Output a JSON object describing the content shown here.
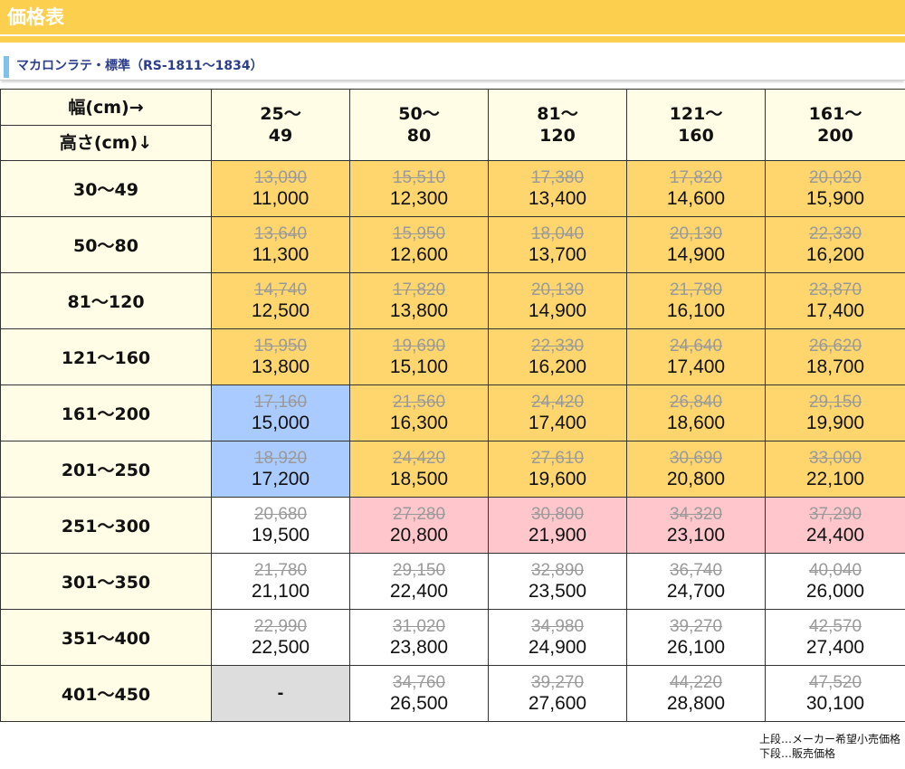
{
  "header": {
    "title": "価格表"
  },
  "subheading": {
    "text": "マカロンラテ・標準（RS-1811〜1834）"
  },
  "table": {
    "corner_width": "幅(cm)→",
    "corner_height": "高さ(cm)↓",
    "columns": [
      {
        "top": "25〜",
        "bottom": "49"
      },
      {
        "top": "50〜",
        "bottom": "80"
      },
      {
        "top": "81〜",
        "bottom": "120"
      },
      {
        "top": "121〜",
        "bottom": "160"
      },
      {
        "top": "161〜",
        "bottom": "200"
      }
    ],
    "rows": [
      {
        "label": "30〜49",
        "cells": [
          {
            "old": "13,090",
            "new": "11,000",
            "color": "#fed66d"
          },
          {
            "old": "15,510",
            "new": "12,300",
            "color": "#fed66d"
          },
          {
            "old": "17,380",
            "new": "13,400",
            "color": "#fed66d"
          },
          {
            "old": "17,820",
            "new": "14,600",
            "color": "#fed66d"
          },
          {
            "old": "20,020",
            "new": "15,900",
            "color": "#fed66d"
          }
        ]
      },
      {
        "label": "50〜80",
        "cells": [
          {
            "old": "13,640",
            "new": "11,300",
            "color": "#fed66d"
          },
          {
            "old": "15,950",
            "new": "12,600",
            "color": "#fed66d"
          },
          {
            "old": "18,040",
            "new": "13,700",
            "color": "#fed66d"
          },
          {
            "old": "20,130",
            "new": "14,900",
            "color": "#fed66d"
          },
          {
            "old": "22,330",
            "new": "16,200",
            "color": "#fed66d"
          }
        ]
      },
      {
        "label": "81〜120",
        "cells": [
          {
            "old": "14,740",
            "new": "12,500",
            "color": "#fed66d"
          },
          {
            "old": "17,820",
            "new": "13,800",
            "color": "#fed66d"
          },
          {
            "old": "20,130",
            "new": "14,900",
            "color": "#fed66d"
          },
          {
            "old": "21,780",
            "new": "16,100",
            "color": "#fed66d"
          },
          {
            "old": "23,870",
            "new": "17,400",
            "color": "#fed66d"
          }
        ]
      },
      {
        "label": "121〜160",
        "cells": [
          {
            "old": "15,950",
            "new": "13,800",
            "color": "#fed66d"
          },
          {
            "old": "19,690",
            "new": "15,100",
            "color": "#fed66d"
          },
          {
            "old": "22,330",
            "new": "16,200",
            "color": "#fed66d"
          },
          {
            "old": "24,640",
            "new": "17,400",
            "color": "#fed66d"
          },
          {
            "old": "26,620",
            "new": "18,700",
            "color": "#fed66d"
          }
        ]
      },
      {
        "label": "161〜200",
        "cells": [
          {
            "old": "17,160",
            "new": "15,000",
            "color": "#aacbff"
          },
          {
            "old": "21,560",
            "new": "16,300",
            "color": "#fed66d"
          },
          {
            "old": "24,420",
            "new": "17,400",
            "color": "#fed66d"
          },
          {
            "old": "26,840",
            "new": "18,600",
            "color": "#fed66d"
          },
          {
            "old": "29,150",
            "new": "19,900",
            "color": "#fed66d"
          }
        ]
      },
      {
        "label": "201〜250",
        "cells": [
          {
            "old": "18,920",
            "new": "17,200",
            "color": "#aacbff"
          },
          {
            "old": "24,420",
            "new": "18,500",
            "color": "#fed66d"
          },
          {
            "old": "27,610",
            "new": "19,600",
            "color": "#fed66d"
          },
          {
            "old": "30,690",
            "new": "20,800",
            "color": "#fed66d"
          },
          {
            "old": "33,000",
            "new": "22,100",
            "color": "#fed66d"
          }
        ]
      },
      {
        "label": "251〜300",
        "cells": [
          {
            "old": "20,680",
            "new": "19,500",
            "color": "#ffffff"
          },
          {
            "old": "27,280",
            "new": "20,800",
            "color": "#ffc7cc"
          },
          {
            "old": "30,800",
            "new": "21,900",
            "color": "#ffc7cc"
          },
          {
            "old": "34,320",
            "new": "23,100",
            "color": "#ffc7cc"
          },
          {
            "old": "37,290",
            "new": "24,400",
            "color": "#ffc7cc"
          }
        ]
      },
      {
        "label": "301〜350",
        "cells": [
          {
            "old": "21,780",
            "new": "21,100",
            "color": "#ffffff"
          },
          {
            "old": "29,150",
            "new": "22,400",
            "color": "#ffffff"
          },
          {
            "old": "32,890",
            "new": "23,500",
            "color": "#ffffff"
          },
          {
            "old": "36,740",
            "new": "24,700",
            "color": "#ffffff"
          },
          {
            "old": "40,040",
            "new": "26,000",
            "color": "#ffffff"
          }
        ]
      },
      {
        "label": "351〜400",
        "cells": [
          {
            "old": "22,990",
            "new": "22,500",
            "color": "#ffffff"
          },
          {
            "old": "31,020",
            "new": "23,800",
            "color": "#ffffff"
          },
          {
            "old": "34,980",
            "new": "24,900",
            "color": "#ffffff"
          },
          {
            "old": "39,270",
            "new": "26,100",
            "color": "#ffffff"
          },
          {
            "old": "42,570",
            "new": "27,400",
            "color": "#ffffff"
          }
        ]
      },
      {
        "label": "401〜450",
        "cells": [
          {
            "dash": "-",
            "color": "#dddddd"
          },
          {
            "old": "34,760",
            "new": "26,500",
            "color": "#ffffff"
          },
          {
            "old": "39,270",
            "new": "27,600",
            "color": "#ffffff"
          },
          {
            "old": "44,220",
            "new": "28,800",
            "color": "#ffffff"
          },
          {
            "old": "47,520",
            "new": "30,100",
            "color": "#ffffff"
          }
        ]
      }
    ]
  },
  "notes": {
    "line1": "上段…メーカー希望小売価格",
    "line2": "下段…販売価格"
  },
  "colors": {
    "banner": "#fccf4f",
    "header_cell": "#fffde6",
    "accent_bar": "#7ec1ea",
    "subheading_text": "#2c3e8c"
  }
}
